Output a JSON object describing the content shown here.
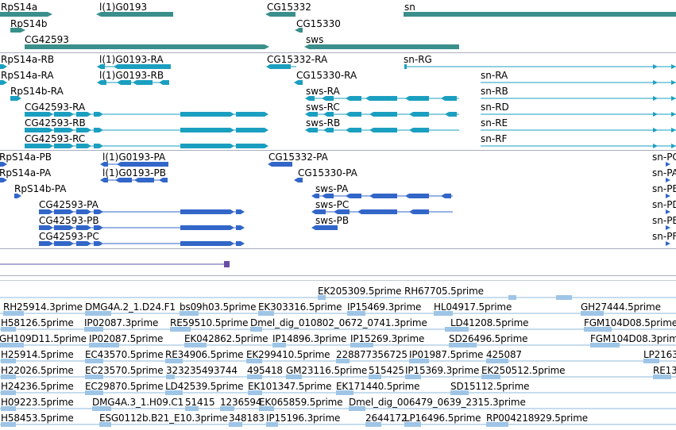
{
  "gene_track": {
    "labels": [
      "RpS14a",
      "l(1)G0193",
      "CG15332",
      "sn",
      "RpS14b",
      "CG15330",
      "CG42593",
      "sws"
    ],
    "colors": {
      "gene": "#3a8f8b"
    }
  },
  "transcript_track_1": {
    "labels": [
      "RpS14a-RB",
      "l(1)G0193-RA",
      "CG15332-RA",
      "sn-RG",
      "RpS14a-RA",
      "l(1)G0193-RB",
      "CG15330-RA",
      "sn-RA",
      "RpS14b-RA",
      "sws-RA",
      "sn-RB",
      "CG42593-RA",
      "sws-RC",
      "sn-RD",
      "CG42593-RB",
      "sws-RB",
      "sn-RE",
      "CG42593-RC",
      "sn-RF"
    ],
    "colors": {
      "transcript": "#1b9fc0"
    }
  },
  "transcript_track_2": {
    "labels": [
      "RpS14a-PB",
      "l(1)G0193-PA",
      "CG15332-PA",
      "sn-PC",
      "RpS14a-PA",
      "l(1)G0193-PB",
      "CG15330-PA",
      "sn-PA",
      "RpS14b-PA",
      "sws-PA",
      "sn-PB",
      "CG42593-PA",
      "sws-PC",
      "sn-PD",
      "CG42593-PB",
      "sws-PB",
      "sn-PE",
      "CG42593-PC",
      "sn-PF"
    ],
    "colors": {
      "protein": "#3266c8"
    }
  },
  "misc_track": {
    "colors": {
      "feature": "#6a4fa8",
      "line": "#7a7ab8"
    }
  },
  "est_track": {
    "labels": [
      "EK205309.5prime",
      "RH67705.5prime",
      "RH25914.3prime",
      "DMG4A.2_1.D24.F1",
      "bs09h03.5prime",
      "EK303316.5prime",
      "IP15469.3prime",
      "HL04917.5prime",
      "GH27444.5prime",
      "H58126.5prime",
      "IP02087.3prime",
      "RE59510.5prime",
      "Dmel_dig_010802_0672_0741.3prime",
      "LD41208.5prime",
      "FGM104D08.5prime",
      "GH109D11.5prime",
      "IP02087.5prime",
      "EK042862.5prime",
      "IP14896.3prime",
      "IP15269.3prime",
      "SD26496.5prime",
      "FGM104D08.3prime",
      "H25914.5prime",
      "EC43570.5prime",
      "RE34906.5prime",
      "EK299410.5prime",
      "228877356725",
      "IP01987.5prime",
      "425087",
      "LP2163",
      "H22026.5prime",
      "EC23570.5prime",
      "323235493744",
      "495418",
      "GM23116.5prime",
      "515425",
      "IP15369.3prime",
      "EK250512.5prime",
      "RE13",
      "H24236.5prime",
      "EC29870.5prime",
      "LD42539.5prime",
      "EK101347.5prime",
      "EK171440.5prime",
      "SD15112.5prime",
      "H09223.5prime",
      "DMG4A.3_1.H09.C1",
      "51415",
      "1236594",
      "EK065859.5prime",
      "Dmel_dig_006479_0639_2315.3prime",
      "H58453.5prime",
      "ESG0112b.B21_E10.3prime",
      "348183",
      "IP15196.3prime",
      "2644172",
      "LP16496.5prime",
      "RP004218929.5prime"
    ],
    "colors": {
      "est": "#9ec5e6",
      "est_line": "#8db9de"
    }
  }
}
